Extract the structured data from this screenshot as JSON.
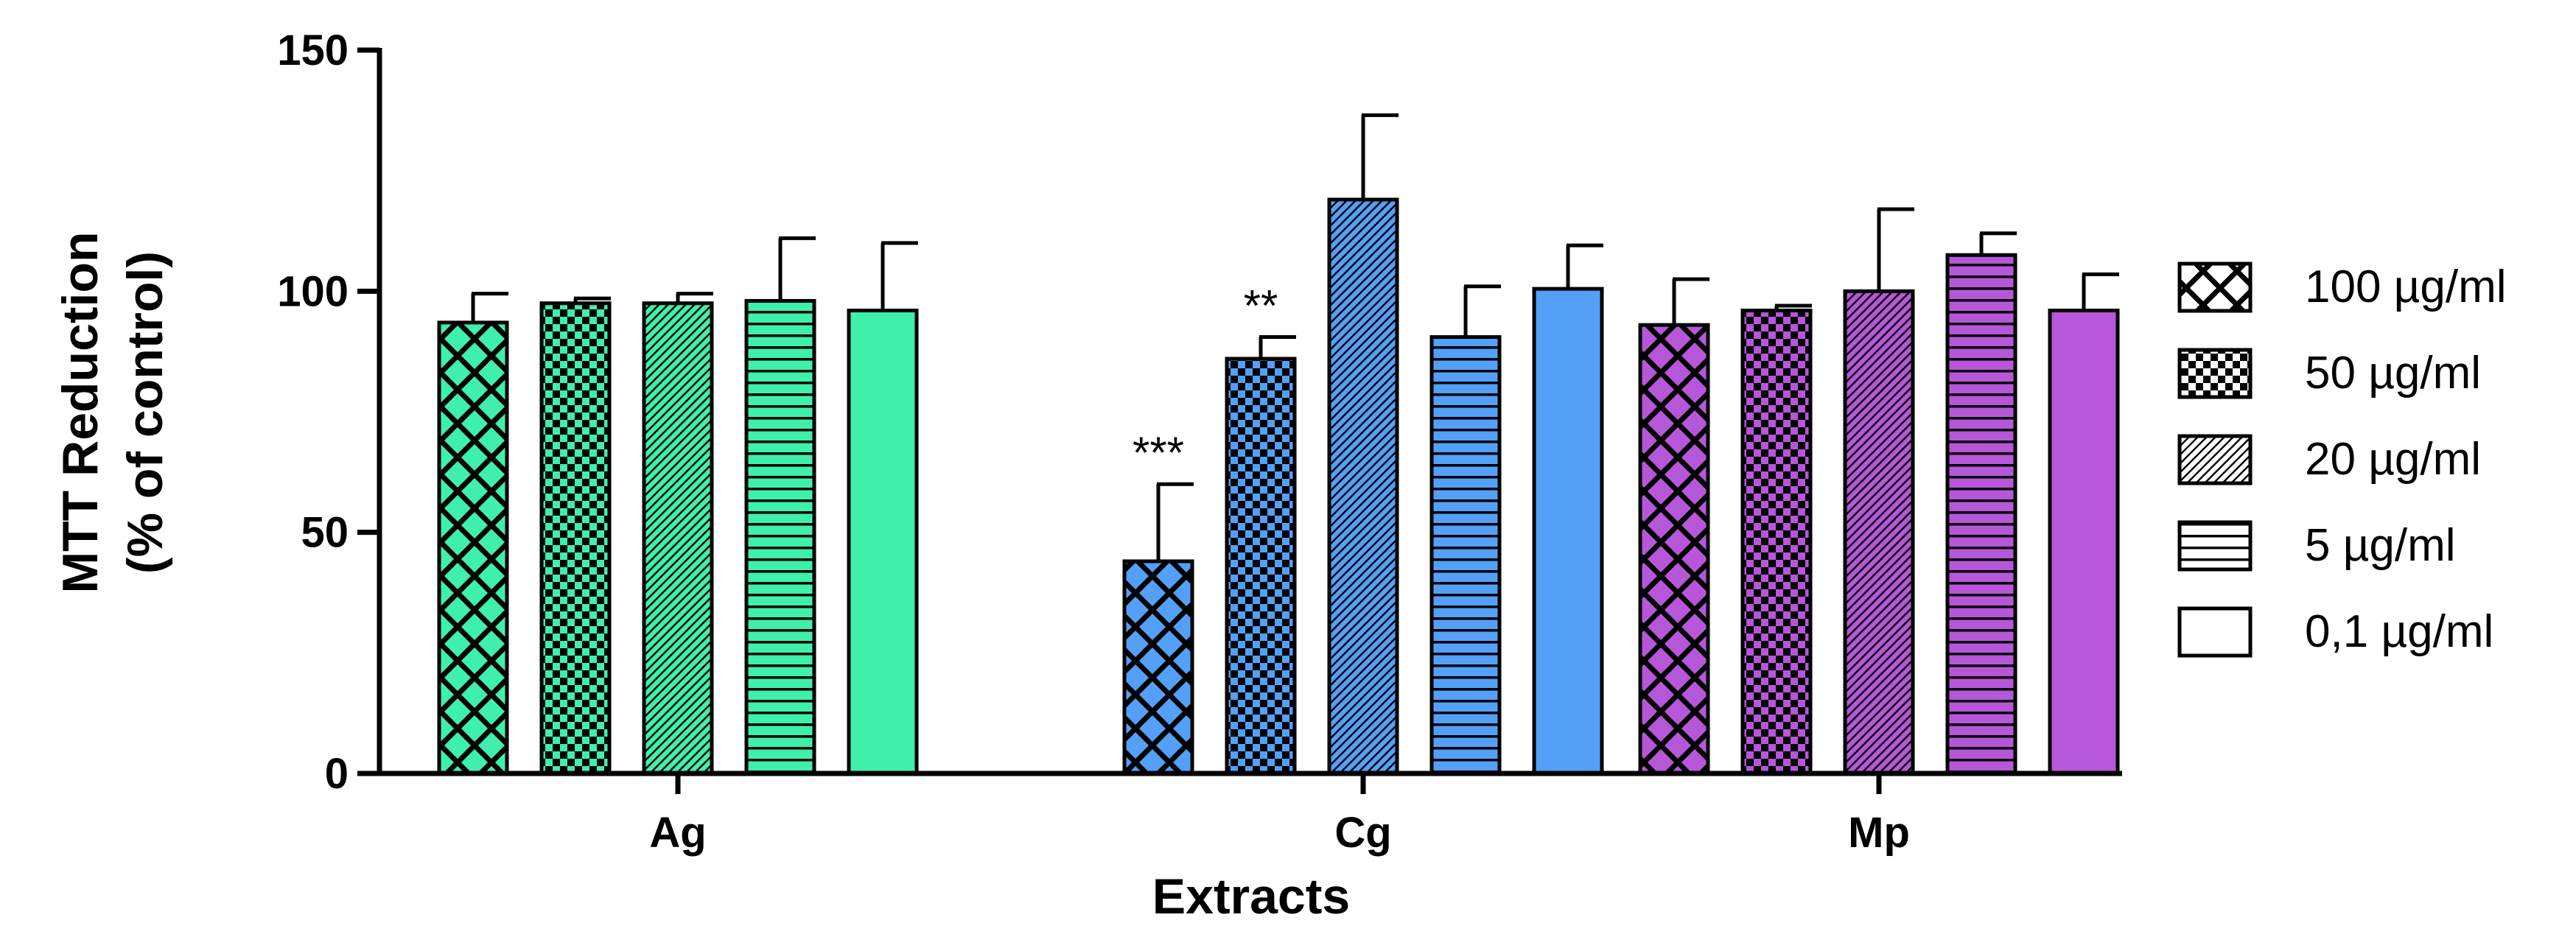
{
  "chart_data": {
    "type": "bar",
    "title": "",
    "xlabel": "Extracts",
    "ylabel_lines": [
      "MTT Reduction",
      "(% of control)"
    ],
    "ylim": [
      0,
      150
    ],
    "yticks": [
      0,
      50,
      100,
      150
    ],
    "grid": false,
    "legend_position": "right",
    "categories": [
      "Ag",
      "Cg",
      "Mp"
    ],
    "category_colors": [
      "#3ef0ac",
      "#54a0f8",
      "#b657d9"
    ],
    "series": [
      {
        "name": "100 µg/ml",
        "pattern": "crosshatch",
        "values": [
          93.5,
          44,
          93
        ],
        "errors": [
          6,
          16,
          9.5
        ],
        "significance": [
          "",
          "***",
          ""
        ]
      },
      {
        "name": "50 µg/ml",
        "pattern": "checker",
        "values": [
          97.5,
          86,
          96
        ],
        "errors": [
          1,
          4.5,
          1
        ],
        "significance": [
          "",
          "**",
          ""
        ]
      },
      {
        "name": "20 µg/ml",
        "pattern": "diagonal",
        "values": [
          97.5,
          119,
          100
        ],
        "errors": [
          2,
          17.5,
          17
        ],
        "significance": [
          "",
          "",
          ""
        ]
      },
      {
        "name": "5 µg/ml",
        "pattern": "horizontal",
        "values": [
          98,
          90.5,
          107.5
        ],
        "errors": [
          13,
          10.5,
          4.5
        ],
        "significance": [
          "",
          "",
          ""
        ]
      },
      {
        "name": "0,1 µg/ml",
        "pattern": "solid",
        "values": [
          96,
          100.5,
          96
        ],
        "errors": [
          14,
          9,
          7.5
        ],
        "significance": [
          "",
          "",
          ""
        ]
      }
    ]
  }
}
